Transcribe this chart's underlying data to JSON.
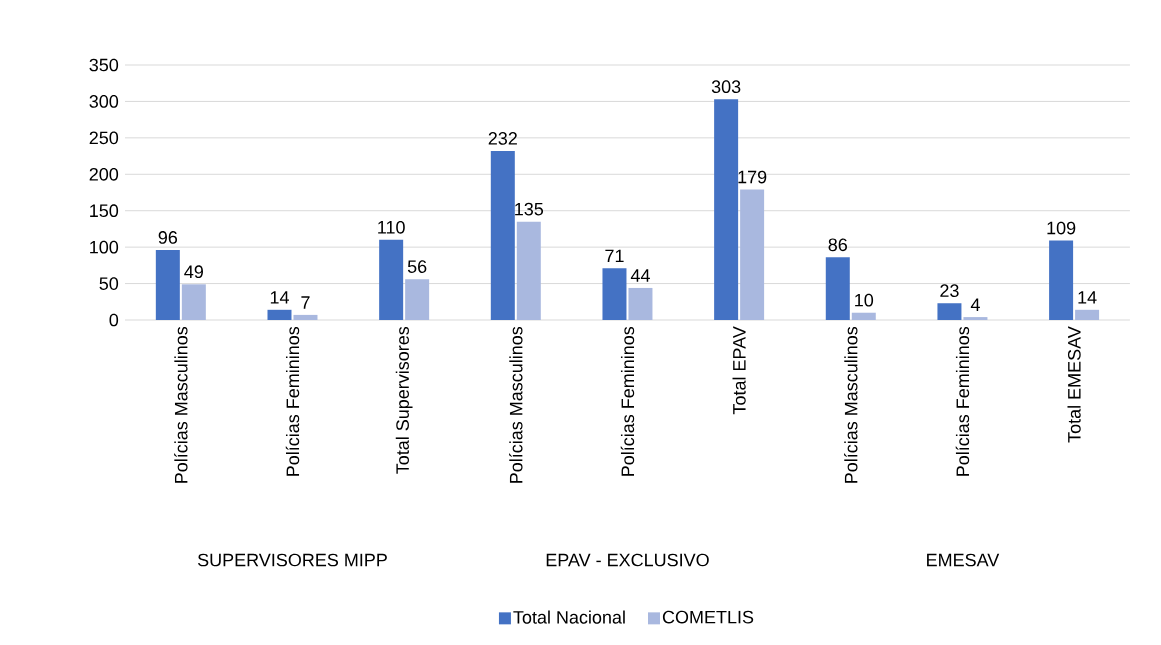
{
  "chart_data": {
    "type": "bar",
    "categories": [
      "Polícias Masculinos",
      "Polícias Femininos",
      "Total Supervisores",
      "Polícias Masculinos",
      "Polícias Femininos",
      "Total EPAV",
      "Polícias Masculinos",
      "Polícias Femininos",
      "Total EMESAV"
    ],
    "series": [
      {
        "name": "Total Nacional",
        "color": "#4472c4",
        "values": [
          96,
          14,
          110,
          232,
          71,
          303,
          86,
          23,
          109
        ]
      },
      {
        "name": "COMETLIS",
        "color": "#a9b8df",
        "values": [
          49,
          7,
          56,
          135,
          44,
          179,
          10,
          4,
          14
        ]
      }
    ],
    "ylim": [
      0,
      350
    ],
    "yticks": [
      0,
      50,
      100,
      150,
      200,
      250,
      300,
      350
    ],
    "grid": "y",
    "legend": "bottom",
    "data_labels": true,
    "annotations": [
      "SUPERVISORES MIPP",
      "EPAV - EXCLUSIVO",
      "EMESAV"
    ]
  }
}
